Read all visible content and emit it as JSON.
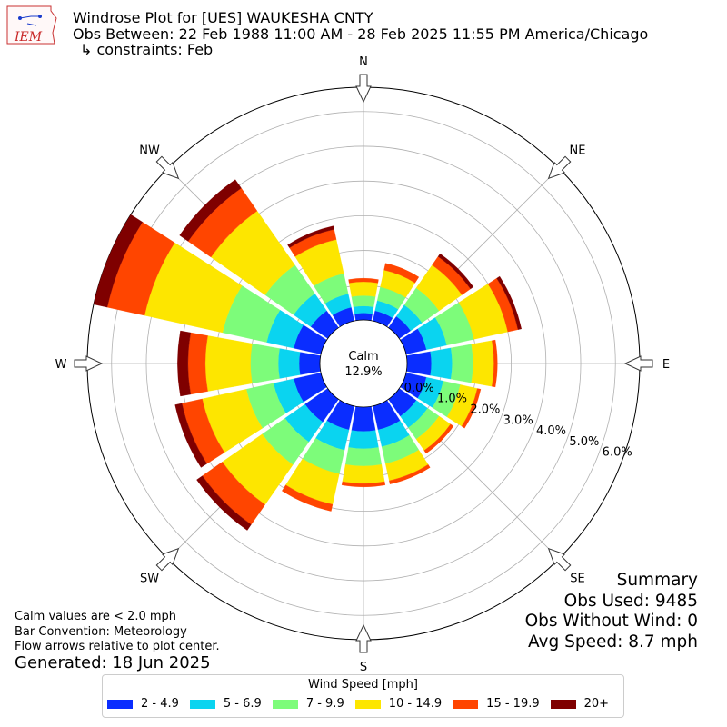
{
  "header": {
    "logo_text": "IEM",
    "title": "Windrose Plot for [UES] WAUKESHA CNTY",
    "obs_range": "Obs Between: 22 Feb 1988 11:00 AM - 28 Feb 2025 11:55 PM America/Chicago",
    "constraints": "↳ constraints: Feb"
  },
  "notes": {
    "calm_note": "Calm values are < 2.0 mph",
    "bar_convention": "Bar Convention: Meteorology",
    "flow_arrows": "Flow arrows relative to plot center.",
    "generated": "Generated: 18 Jun 2025"
  },
  "summary": {
    "title": "Summary",
    "obs_used": "Obs Used: 9485",
    "obs_without_wind": "Obs Without Wind: 0",
    "avg_speed": "Avg Speed: 8.7 mph"
  },
  "legend": {
    "title": "Wind Speed [mph]",
    "items": [
      {
        "label": "2 - 4.9",
        "color": "#0a2dff"
      },
      {
        "label": "5 - 6.9",
        "color": "#0ad4f0"
      },
      {
        "label": "7 - 9.9",
        "color": "#7dfc7a"
      },
      {
        "label": "10 - 14.9",
        "color": "#fde600"
      },
      {
        "label": "15 - 19.9",
        "color": "#ff4500"
      },
      {
        "label": "20+",
        "color": "#7f0000"
      }
    ]
  },
  "chart_data": {
    "type": "windrose",
    "directions": [
      "N",
      "NNE",
      "NE",
      "ENE",
      "E",
      "ESE",
      "SE",
      "SSE",
      "S",
      "SSW",
      "SW",
      "WSW",
      "W",
      "WNW",
      "NW",
      "NNW"
    ],
    "compass_labels": [
      "N",
      "NE",
      "E",
      "SE",
      "S",
      "SW",
      "W",
      "NW"
    ],
    "speed_bins": [
      "2 - 4.9",
      "5 - 6.9",
      "7 - 9.9",
      "10 - 14.9",
      "15 - 19.9",
      "20+"
    ],
    "values": [
      [
        0.2,
        0.2,
        0.3,
        0.4,
        0.1,
        0.0
      ],
      [
        0.3,
        0.3,
        0.4,
        0.5,
        0.2,
        0.0
      ],
      [
        0.4,
        0.4,
        0.6,
        0.8,
        0.3,
        0.1
      ],
      [
        0.6,
        0.6,
        0.8,
        1.0,
        0.3,
        0.1
      ],
      [
        0.7,
        0.6,
        0.6,
        0.6,
        0.1,
        0.0
      ],
      [
        0.6,
        0.5,
        0.5,
        0.5,
        0.1,
        0.0
      ],
      [
        0.6,
        0.4,
        0.4,
        0.4,
        0.1,
        0.0
      ],
      [
        0.7,
        0.5,
        0.5,
        0.5,
        0.1,
        0.0
      ],
      [
        0.7,
        0.5,
        0.5,
        0.5,
        0.1,
        0.0
      ],
      [
        0.7,
        0.6,
        0.7,
        0.9,
        0.2,
        0.0
      ],
      [
        0.8,
        0.7,
        0.8,
        1.4,
        0.7,
        0.2
      ],
      [
        0.8,
        0.6,
        0.8,
        1.3,
        0.6,
        0.2
      ],
      [
        0.6,
        0.6,
        0.8,
        1.3,
        0.5,
        0.3
      ],
      [
        0.8,
        0.8,
        1.3,
        2.3,
        1.1,
        0.4
      ],
      [
        0.6,
        0.6,
        1.0,
        1.9,
        0.8,
        0.3
      ],
      [
        0.4,
        0.4,
        0.6,
        1.0,
        0.3,
        0.1
      ]
    ],
    "calm_label": "Calm",
    "calm_value": "12.9%",
    "radial_ticks": [
      "0.0%",
      "1.0%",
      "2.0%",
      "3.0%",
      "4.0%",
      "5.0%",
      "6.0%"
    ],
    "rmax": 6.7,
    "units": "percent of observations",
    "grid": true
  }
}
